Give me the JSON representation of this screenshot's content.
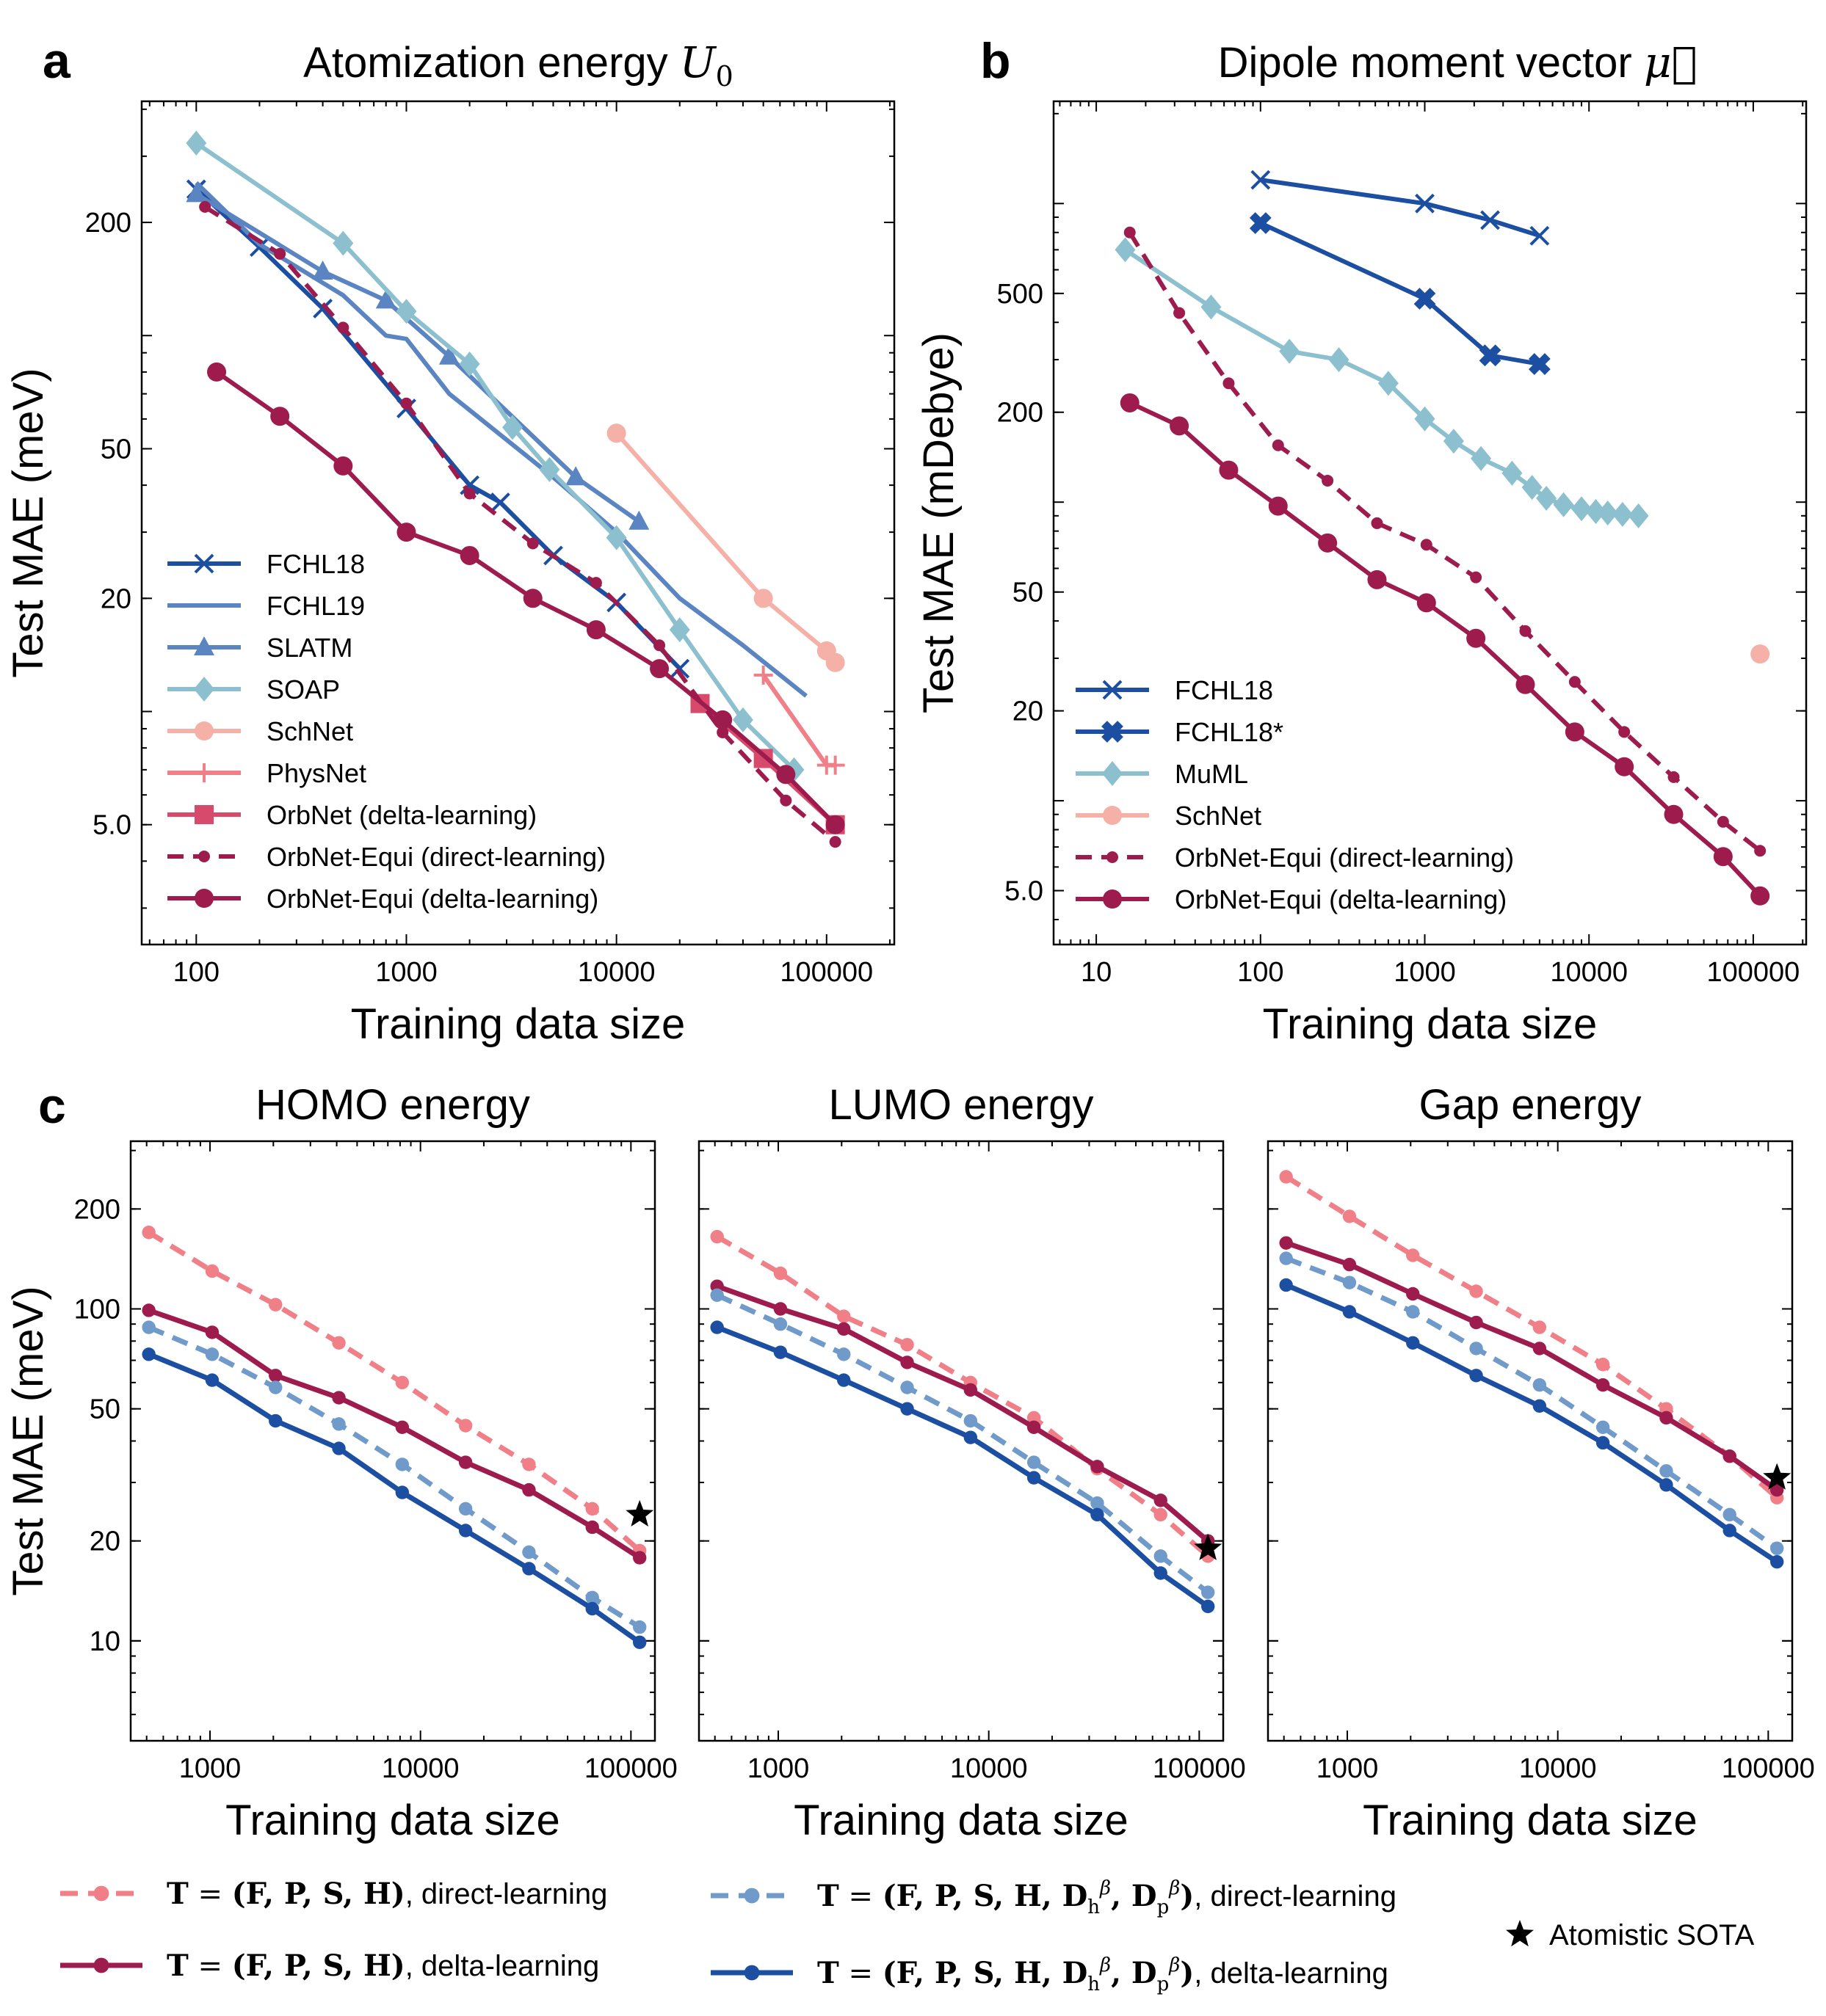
{
  "panels": {
    "a": {
      "letter": "a",
      "title": "Atomization energy",
      "title_math": "U",
      "title_sub": "0"
    },
    "b": {
      "letter": "b",
      "title": "Dipole moment vector",
      "title_math": "μ⃗"
    },
    "c": {
      "letter": "c"
    }
  },
  "bottom_legend": {
    "prefix": "T",
    "items": [
      {
        "tuple": "(F, P, S, H)",
        "suffix": ", direct-learning",
        "color": "#F07F88",
        "dashed": true
      },
      {
        "tuple": "(F, P, S, H)",
        "suffix": ", delta-learning",
        "color": "#9E1B4D",
        "dashed": false
      },
      {
        "tuple": "(F, P, S, H, D",
        "suffix": ", direct-learning",
        "color": "#6F9AC9",
        "dashed": true,
        "extra": true
      },
      {
        "tuple": "(F, P, S, H, D",
        "suffix": ", delta-learning",
        "color": "#1C4FA1",
        "dashed": false,
        "extra": true
      }
    ],
    "dh": "h",
    "dp": "p",
    "beta": "β",
    "sota": "Atomistic SOTA"
  },
  "chart_data": [
    {
      "id": "a",
      "type": "line",
      "title": "Atomization energy U0",
      "xlabel": "Training data size",
      "ylabel": "Test MAE (meV)",
      "xscale": "log",
      "yscale": "log",
      "xlim": [
        55,
        210000
      ],
      "ylim": [
        2.4,
        420
      ],
      "xticks": [
        100,
        1000,
        10000,
        100000
      ],
      "xtick_labels": [
        "100",
        "1000",
        "10000",
        "100000"
      ],
      "yticks": [
        5,
        20,
        50,
        200
      ],
      "ytick_labels": [
        "5.0",
        "20",
        "50",
        "200"
      ],
      "legend": "lower-left",
      "series": [
        {
          "name": "FCHL18",
          "color": "#1C4FA1",
          "marker": "x",
          "style": "solid",
          "x": [
            100,
            200,
            400,
            1000,
            2000,
            2800,
            5000,
            10000,
            20000
          ],
          "y": [
            245,
            172,
            118,
            64,
            40,
            36,
            26,
            19.5,
            13
          ]
        },
        {
          "name": "FCHL19",
          "color": "#5A84C2",
          "marker": "none",
          "style": "solid",
          "x": [
            100,
            200,
            500,
            800,
            1000,
            1600,
            5000,
            10000,
            20000,
            40000,
            80000
          ],
          "y": [
            255,
            175,
            128,
            100,
            98,
            70,
            42,
            30,
            20,
            15,
            11
          ]
        },
        {
          "name": "SLATM",
          "color": "#5A84C2",
          "marker": "triangle",
          "style": "solid",
          "x": [
            100,
            400,
            800,
            1600,
            6400,
            12800
          ],
          "y": [
            238,
            148,
            124,
            88,
            42,
            32
          ]
        },
        {
          "name": "SOAP",
          "color": "#8DC0CF",
          "marker": "diamond",
          "style": "solid",
          "x": [
            100,
            500,
            1000,
            2000,
            3200,
            4800,
            10000,
            20000,
            40000,
            70000
          ],
          "y": [
            325,
            176,
            116,
            84,
            57,
            44,
            29,
            16.5,
            9.5,
            7
          ]
        },
        {
          "name": "SchNet",
          "color": "#F5B0A8",
          "marker": "circle",
          "style": "solid",
          "x": [
            10000,
            50000,
            100000,
            110000
          ],
          "y": [
            55,
            20,
            14.5,
            13.5
          ]
        },
        {
          "name": "PhysNet",
          "color": "#F07F88",
          "marker": "plus",
          "style": "solid",
          "x": [
            50000,
            100000,
            110000
          ],
          "y": [
            12.5,
            7.2,
            7.2
          ]
        },
        {
          "name": "OrbNet (delta-learning)",
          "color": "#D84A6C",
          "marker": "square",
          "style": "solid",
          "x": [
            25000,
            50000,
            110000
          ],
          "y": [
            10.5,
            7.5,
            5
          ]
        },
        {
          "name": "OrbNet-Equi (direct-learning)",
          "color": "#9E1B4D",
          "marker": "smallcircle",
          "style": "dashed",
          "x": [
            110,
            250,
            500,
            1000,
            2000,
            4000,
            8000,
            16000,
            32000,
            64000,
            110000
          ],
          "y": [
            220,
            165,
            105,
            66,
            38,
            28,
            22,
            15,
            8.8,
            5.8,
            4.5
          ]
        },
        {
          "name": "OrbNet-Equi (delta-learning)",
          "color": "#9E1B4D",
          "marker": "circle",
          "style": "solid",
          "x": [
            125,
            250,
            500,
            1000,
            2000,
            4000,
            8000,
            16000,
            32000,
            64000,
            110000
          ],
          "y": [
            80,
            61,
            45,
            30,
            26,
            20,
            16.5,
            13,
            9.5,
            6.8,
            5
          ]
        }
      ]
    },
    {
      "id": "b",
      "type": "line",
      "title": "Dipole moment vector μ⃗",
      "xlabel": "Training data size",
      "ylabel": "Test MAE (mDebye)",
      "xscale": "log",
      "yscale": "log",
      "xlim": [
        5.5,
        210000
      ],
      "ylim": [
        3.3,
        2200
      ],
      "xticks": [
        10,
        100,
        1000,
        10000,
        100000
      ],
      "xtick_labels": [
        "10",
        "100",
        "1000",
        "10000",
        "100000"
      ],
      "yticks": [
        5,
        20,
        50,
        200,
        500
      ],
      "ytick_labels": [
        "5.0",
        "20",
        "50",
        "200",
        "500"
      ],
      "legend": "lower-left",
      "series": [
        {
          "name": "FCHL18",
          "color": "#1C4FA1",
          "marker": "x",
          "style": "solid",
          "x": [
            100,
            1000,
            2500,
            5000
          ],
          "y": [
            1200,
            1000,
            880,
            780
          ]
        },
        {
          "name": "FCHL18*",
          "color": "#1C4FA1",
          "marker": "xbold",
          "style": "solid",
          "x": [
            100,
            1000,
            2500,
            5000
          ],
          "y": [
            860,
            480,
            310,
            290
          ]
        },
        {
          "name": "MuML",
          "color": "#8DC0CF",
          "marker": "diamond",
          "style": "solid",
          "x": [
            15,
            50,
            150,
            300,
            600,
            1000,
            1500,
            2200,
            3400,
            4500,
            5500,
            7000,
            9000,
            11000,
            13000,
            16000,
            20000
          ],
          "y": [
            700,
            450,
            320,
            300,
            250,
            190,
            160,
            140,
            125,
            112,
            103,
            98,
            95,
            93,
            92,
            91,
            90
          ]
        },
        {
          "name": "SchNet",
          "color": "#F5B0A8",
          "marker": "circle",
          "style": "solid",
          "x": [
            110000
          ],
          "y": [
            31
          ]
        },
        {
          "name": "OrbNet-Equi (direct-learning)",
          "color": "#9E1B4D",
          "marker": "smallcircle",
          "style": "dashed",
          "x": [
            16,
            32,
            64,
            128,
            256,
            512,
            1024,
            2048,
            4096,
            8192,
            16384,
            32768,
            65536,
            110000
          ],
          "y": [
            800,
            430,
            250,
            155,
            118,
            85,
            72,
            56,
            37,
            25,
            17,
            12,
            8.5,
            6.8
          ]
        },
        {
          "name": "OrbNet-Equi (delta-learning)",
          "color": "#9E1B4D",
          "marker": "circle",
          "style": "solid",
          "x": [
            16,
            32,
            64,
            128,
            256,
            512,
            1024,
            2048,
            4096,
            8192,
            16384,
            32768,
            65536,
            110000
          ],
          "y": [
            215,
            180,
            128,
            97,
            73,
            55,
            46,
            35,
            24.5,
            17,
            13,
            9,
            6.5,
            4.8
          ]
        }
      ]
    },
    {
      "id": "c1",
      "type": "line",
      "title": "HOMO energy",
      "xlabel": "Training data size",
      "ylabel": "Test MAE (meV)",
      "xscale": "log",
      "yscale": "log",
      "xlim": [
        420,
        130000
      ],
      "ylim": [
        5,
        320
      ],
      "xticks": [
        1000,
        10000,
        100000
      ],
      "xtick_labels": [
        "1000",
        "10000",
        "100000"
      ],
      "yticks": [
        10,
        20,
        50,
        100,
        200
      ],
      "ytick_labels": [
        "10",
        "20",
        "50",
        "100",
        "200"
      ],
      "x": [
        512,
        1024,
        2048,
        4096,
        8192,
        16384,
        32768,
        65536,
        110000
      ],
      "series": [
        {
          "name": "T = (F, P, S, H), direct-learning",
          "color": "#F07F88",
          "style": "dashed",
          "y": [
            170,
            130,
            103,
            79,
            60,
            44.5,
            34,
            25,
            18.7
          ]
        },
        {
          "name": "T = (F, P, S, H), delta-learning",
          "color": "#9E1B4D",
          "style": "solid",
          "y": [
            99,
            85,
            63,
            54,
            44,
            34.5,
            28.5,
            22,
            17.8
          ]
        },
        {
          "name": "T = (F, P, S, H, Dh, Dp), direct-learning",
          "color": "#6F9AC9",
          "style": "dashed",
          "y": [
            88,
            73,
            58,
            45,
            34,
            25,
            18.5,
            13.5,
            11
          ]
        },
        {
          "name": "T = (F, P, S, H, Dh, Dp), delta-learning",
          "color": "#1C4FA1",
          "style": "solid",
          "y": [
            73,
            61,
            46,
            38,
            28,
            21.5,
            16.5,
            12.5,
            9.9
          ]
        }
      ],
      "sota": {
        "x": 110000,
        "y": 24
      }
    },
    {
      "id": "c2",
      "type": "line",
      "title": "LUMO energy",
      "xlabel": "Training data size",
      "ylabel": "",
      "xscale": "log",
      "yscale": "log",
      "xlim": [
        420,
        130000
      ],
      "ylim": [
        5,
        320
      ],
      "xticks": [
        1000,
        10000,
        100000
      ],
      "xtick_labels": [
        "1000",
        "10000",
        "100000"
      ],
      "yticks": [
        10,
        20,
        50,
        100,
        200
      ],
      "ytick_labels": [],
      "x": [
        512,
        1024,
        2048,
        4096,
        8192,
        16384,
        32768,
        65536,
        110000
      ],
      "series": [
        {
          "name": "T = (F, P, S, H), direct-learning",
          "color": "#F07F88",
          "style": "dashed",
          "y": [
            165,
            128,
            95,
            78,
            60,
            47,
            33,
            24,
            18
          ]
        },
        {
          "name": "T = (F, P, S, H), delta-learning",
          "color": "#9E1B4D",
          "style": "solid",
          "y": [
            117,
            100,
            87,
            69,
            57,
            44,
            33.5,
            26.5,
            20
          ]
        },
        {
          "name": "T = (F, P, S, H, Dh, Dp), direct-learning",
          "color": "#6F9AC9",
          "style": "dashed",
          "y": [
            110,
            90,
            73,
            58,
            46,
            34.5,
            26,
            18,
            14
          ]
        },
        {
          "name": "T = (F, P, S, H, Dh, Dp), delta-learning",
          "color": "#1C4FA1",
          "style": "solid",
          "y": [
            88,
            74,
            61,
            50,
            41,
            31,
            24,
            16,
            12.7
          ]
        }
      ],
      "sota": {
        "x": 110000,
        "y": 19
      }
    },
    {
      "id": "c3",
      "type": "line",
      "title": "Gap energy",
      "xlabel": "Training data size",
      "ylabel": "",
      "xscale": "log",
      "yscale": "log",
      "xlim": [
        420,
        130000
      ],
      "ylim": [
        5,
        320
      ],
      "xticks": [
        1000,
        10000,
        100000
      ],
      "xtick_labels": [
        "1000",
        "10000",
        "100000"
      ],
      "yticks": [
        10,
        20,
        50,
        100,
        200
      ],
      "ytick_labels": [],
      "x": [
        512,
        1024,
        2048,
        4096,
        8192,
        16384,
        32768,
        65536,
        110000
      ],
      "series": [
        {
          "name": "T = (F, P, S, H), direct-learning",
          "color": "#F07F88",
          "style": "dashed",
          "y": [
            250,
            190,
            145,
            113,
            88,
            68,
            50,
            36,
            27
          ]
        },
        {
          "name": "T = (F, P, S, H), delta-learning",
          "color": "#9E1B4D",
          "style": "solid",
          "y": [
            158,
            136,
            111,
            91,
            76,
            59,
            47,
            36,
            28.5
          ]
        },
        {
          "name": "T = (F, P, S, H, Dh, Dp), direct-learning",
          "color": "#6F9AC9",
          "style": "dashed",
          "y": [
            142,
            120,
            98,
            76,
            59,
            44,
            32.5,
            24,
            19
          ]
        },
        {
          "name": "T = (F, P, S, H, Dh, Dp), delta-learning",
          "color": "#1C4FA1",
          "style": "solid",
          "y": [
            118,
            98,
            79,
            63,
            51,
            39.5,
            29.5,
            21.5,
            17.3
          ]
        }
      ],
      "sota": {
        "x": 110000,
        "y": 31
      }
    }
  ]
}
